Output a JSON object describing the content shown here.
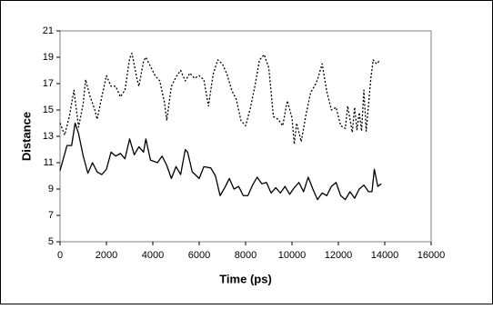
{
  "chart_data": {
    "type": "line",
    "x_label": "Time (ps)",
    "y_label": "Distance",
    "xlim": [
      0,
      16000
    ],
    "xticks": [
      0,
      2000,
      4000,
      6000,
      8000,
      10000,
      12000,
      14000,
      16000
    ],
    "ylim": [
      5,
      21
    ],
    "yticks": [
      5,
      7,
      9,
      11,
      13,
      15,
      17,
      19,
      21
    ],
    "grid": false,
    "series": [
      {
        "color": "#000000",
        "line_style": "solid",
        "x": [
          0,
          300,
          500,
          650,
          800,
          1000,
          1200,
          1400,
          1600,
          1800,
          2000,
          2200,
          2400,
          2600,
          2800,
          3000,
          3200,
          3400,
          3600,
          3700,
          3900,
          4200,
          4400,
          4600,
          4800,
          5000,
          5200,
          5400,
          5500,
          5700,
          6000,
          6200,
          6500,
          6700,
          6900,
          7100,
          7300,
          7500,
          7700,
          7900,
          8100,
          8300,
          8500,
          8700,
          8900,
          9100,
          9300,
          9500,
          9700,
          9900,
          10100,
          10300,
          10500,
          10700,
          10900,
          11100,
          11300,
          11500,
          11700,
          11900,
          12100,
          12300,
          12500,
          12700,
          12900,
          13100,
          13300,
          13450,
          13550,
          13700,
          13850
        ],
        "values": [
          10.4,
          12.3,
          12.3,
          14.0,
          13.2,
          11.5,
          10.2,
          11.0,
          10.3,
          10.1,
          10.5,
          11.8,
          11.5,
          11.7,
          11.3,
          12.8,
          11.6,
          12.2,
          11.8,
          12.8,
          11.2,
          11.0,
          11.5,
          10.8,
          9.8,
          10.7,
          10.1,
          12.0,
          11.8,
          10.3,
          9.8,
          10.7,
          10.6,
          10.0,
          8.5,
          9.1,
          9.8,
          9.0,
          9.2,
          8.5,
          8.5,
          9.3,
          9.9,
          9.4,
          9.5,
          8.7,
          9.1,
          8.7,
          9.2,
          8.6,
          9.1,
          9.5,
          8.8,
          9.9,
          9.0,
          8.2,
          8.7,
          8.5,
          9.2,
          9.5,
          8.5,
          8.2,
          8.8,
          8.3,
          9.0,
          9.3,
          8.8,
          8.8,
          10.5,
          9.2,
          9.4
        ]
      },
      {
        "color": "#000000",
        "line_style": "dotted",
        "x": [
          0,
          200,
          400,
          600,
          800,
          1000,
          1100,
          1300,
          1500,
          1600,
          1800,
          2000,
          2200,
          2400,
          2600,
          2800,
          3000,
          3100,
          3300,
          3400,
          3600,
          3700,
          3900,
          4100,
          4300,
          4500,
          4600,
          4800,
          5000,
          5200,
          5400,
          5600,
          5800,
          6000,
          6200,
          6400,
          6600,
          6800,
          7000,
          7200,
          7400,
          7600,
          7800,
          8000,
          8200,
          8400,
          8600,
          8800,
          9000,
          9200,
          9400,
          9600,
          9800,
          10000,
          10100,
          10200,
          10400,
          10600,
          10800,
          11000,
          11100,
          11300,
          11500,
          11700,
          11900,
          12100,
          12300,
          12400,
          12600,
          12700,
          12800,
          12900,
          13000,
          13100,
          13200,
          13400,
          13500,
          13650,
          13800
        ],
        "values": [
          14.0,
          13.1,
          14.5,
          16.5,
          13.7,
          15.5,
          17.3,
          16.0,
          15.0,
          14.3,
          16.0,
          17.6,
          16.8,
          16.8,
          16.0,
          16.5,
          18.9,
          19.3,
          17.5,
          16.8,
          18.7,
          19.0,
          18.3,
          17.6,
          17.2,
          15.6,
          14.2,
          16.8,
          17.5,
          18.0,
          17.2,
          17.8,
          17.4,
          17.6,
          17.3,
          15.3,
          17.7,
          18.8,
          18.5,
          17.7,
          16.5,
          15.8,
          14.2,
          13.8,
          15.1,
          16.8,
          18.8,
          19.2,
          18.2,
          14.5,
          14.3,
          13.8,
          15.7,
          14.4,
          12.4,
          14.0,
          12.6,
          14.6,
          16.3,
          16.9,
          17.3,
          18.5,
          16.4,
          15.0,
          15.2,
          13.8,
          13.6,
          15.3,
          13.3,
          15.2,
          13.5,
          14.8,
          13.4,
          16.5,
          13.4,
          17.4,
          18.8,
          18.5,
          18.8
        ]
      }
    ]
  }
}
